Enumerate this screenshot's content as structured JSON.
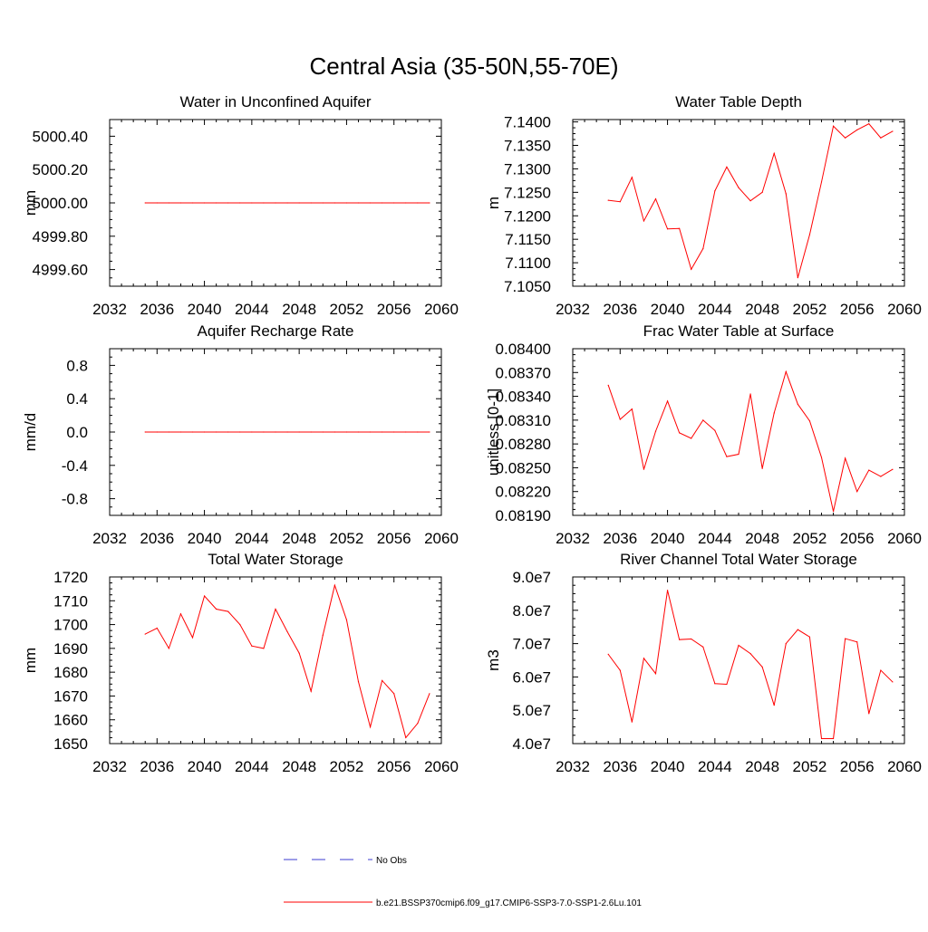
{
  "figure": {
    "title": "Central Asia (35-50N,55-70E)"
  },
  "legend": {
    "obs_label": "No Obs",
    "obs_color": "#3b3bd0",
    "model_label": "b.e21.BSSP370cmip6.f09_g17.CMIP6-SSP3-7.0-SSP1-2.6Lu.101",
    "model_color": "#ff0000"
  },
  "chart_data": [
    {
      "type": "line",
      "title": "Water in Unconfined Aquifer",
      "ylabel": "mm",
      "xlim": [
        2032,
        2060
      ],
      "ylim": [
        4999.5,
        5000.5
      ],
      "xticks": [
        2032,
        2036,
        2040,
        2044,
        2048,
        2052,
        2056,
        2060
      ],
      "yticks": [
        4999.6,
        4999.8,
        5000.0,
        5000.2,
        5000.4
      ],
      "ytick_labels": [
        "4999.60",
        "4999.80",
        "5000.00",
        "5000.20",
        "5000.40"
      ],
      "x": [
        2035,
        2036,
        2037,
        2038,
        2039,
        2040,
        2041,
        2042,
        2043,
        2044,
        2045,
        2046,
        2047,
        2048,
        2049,
        2050,
        2051,
        2052,
        2053,
        2054,
        2055,
        2056,
        2057,
        2058,
        2059
      ],
      "series": [
        {
          "values": [
            5000,
            5000,
            5000,
            5000,
            5000,
            5000,
            5000,
            5000,
            5000,
            5000,
            5000,
            5000,
            5000,
            5000,
            5000,
            5000,
            5000,
            5000,
            5000,
            5000,
            5000,
            5000,
            5000,
            5000,
            5000
          ]
        }
      ]
    },
    {
      "type": "line",
      "title": "Water Table Depth",
      "ylabel": "m",
      "xlim": [
        2032,
        2060
      ],
      "ylim": [
        7.105,
        7.1405
      ],
      "xticks": [
        2032,
        2036,
        2040,
        2044,
        2048,
        2052,
        2056,
        2060
      ],
      "yticks": [
        7.105,
        7.11,
        7.115,
        7.12,
        7.125,
        7.13,
        7.135,
        7.14
      ],
      "ytick_labels": [
        "7.1050",
        "7.1100",
        "7.1150",
        "7.1200",
        "7.1250",
        "7.1300",
        "7.1350",
        "7.1400"
      ],
      "x": [
        2035,
        2036,
        2037,
        2038,
        2039,
        2040,
        2041,
        2042,
        2043,
        2044,
        2045,
        2046,
        2047,
        2048,
        2049,
        2050,
        2051,
        2052,
        2053,
        2054,
        2055,
        2056,
        2057,
        2058,
        2059
      ],
      "series": [
        {
          "values": [
            7.1233,
            7.123,
            7.1282,
            7.1189,
            7.1236,
            7.1172,
            7.1173,
            7.1086,
            7.113,
            7.1253,
            7.1304,
            7.126,
            7.1232,
            7.125,
            7.1333,
            7.1247,
            7.1068,
            7.116,
            7.1272,
            7.1391,
            7.1366,
            7.1383,
            7.1396,
            7.1366,
            7.138
          ]
        }
      ]
    },
    {
      "type": "line",
      "title": "Aquifer Recharge Rate",
      "ylabel": "mm/d",
      "xlim": [
        2032,
        2060
      ],
      "ylim": [
        -1.0,
        1.0
      ],
      "xticks": [
        2032,
        2036,
        2040,
        2044,
        2048,
        2052,
        2056,
        2060
      ],
      "yticks": [
        -0.8,
        -0.4,
        0.0,
        0.4,
        0.8
      ],
      "ytick_labels": [
        "-0.8",
        "-0.4",
        "0.0",
        "0.4",
        "0.8"
      ],
      "x": [
        2035,
        2036,
        2037,
        2038,
        2039,
        2040,
        2041,
        2042,
        2043,
        2044,
        2045,
        2046,
        2047,
        2048,
        2049,
        2050,
        2051,
        2052,
        2053,
        2054,
        2055,
        2056,
        2057,
        2058,
        2059
      ],
      "series": [
        {
          "values": [
            0,
            0,
            0,
            0,
            0,
            0,
            0,
            0,
            0,
            0,
            0,
            0,
            0,
            0,
            0,
            0,
            0,
            0,
            0,
            0,
            0,
            0,
            0,
            0,
            0
          ]
        }
      ]
    },
    {
      "type": "line",
      "title": "Frac Water Table at Surface",
      "ylabel": "unitless [0-1]",
      "xlim": [
        2032,
        2060
      ],
      "ylim": [
        0.0819,
        0.084
      ],
      "xticks": [
        2032,
        2036,
        2040,
        2044,
        2048,
        2052,
        2056,
        2060
      ],
      "yticks": [
        0.0819,
        0.0822,
        0.0825,
        0.0828,
        0.0831,
        0.0834,
        0.0837,
        0.084
      ],
      "ytick_labels": [
        "0.08190",
        "0.08220",
        "0.08250",
        "0.08280",
        "0.08310",
        "0.08340",
        "0.08370",
        "0.08400"
      ],
      "x": [
        2035,
        2036,
        2037,
        2038,
        2039,
        2040,
        2041,
        2042,
        2043,
        2044,
        2045,
        2046,
        2047,
        2048,
        2049,
        2050,
        2051,
        2052,
        2053,
        2054,
        2055,
        2056,
        2057,
        2058,
        2059
      ],
      "series": [
        {
          "values": [
            0.08354,
            0.08311,
            0.08324,
            0.08248,
            0.08296,
            0.08334,
            0.08294,
            0.08287,
            0.0831,
            0.08297,
            0.08264,
            0.08267,
            0.08343,
            0.08249,
            0.08319,
            0.08371,
            0.0833,
            0.08309,
            0.08263,
            0.08195,
            0.08262,
            0.0822,
            0.08247,
            0.08239,
            0.08248
          ]
        }
      ]
    },
    {
      "type": "line",
      "title": "Total Water Storage",
      "ylabel": "mm",
      "xlim": [
        2032,
        2060
      ],
      "ylim": [
        1650,
        1720
      ],
      "xticks": [
        2032,
        2036,
        2040,
        2044,
        2048,
        2052,
        2056,
        2060
      ],
      "yticks": [
        1650,
        1660,
        1670,
        1680,
        1690,
        1700,
        1710,
        1720
      ],
      "ytick_labels": [
        "1650",
        "1660",
        "1670",
        "1680",
        "1690",
        "1700",
        "1710",
        "1720"
      ],
      "x": [
        2035,
        2036,
        2037,
        2038,
        2039,
        2040,
        2041,
        2042,
        2043,
        2044,
        2045,
        2046,
        2047,
        2048,
        2049,
        2050,
        2051,
        2052,
        2053,
        2054,
        2055,
        2056,
        2057,
        2058,
        2059
      ],
      "series": [
        {
          "values": [
            1696,
            1698.5,
            1690,
            1704.5,
            1694.5,
            1712,
            1706.5,
            1705.5,
            1700,
            1691,
            1690,
            1706.5,
            1697,
            1688,
            1672,
            1695.5,
            1716.5,
            1702,
            1676,
            1657,
            1676.5,
            1671,
            1652.5,
            1658.5,
            1671
          ]
        }
      ]
    },
    {
      "type": "line",
      "title": "River Channel Total Water Storage",
      "ylabel": "m3",
      "xlim": [
        2032,
        2060
      ],
      "ylim": [
        40000000,
        90000000
      ],
      "xticks": [
        2032,
        2036,
        2040,
        2044,
        2048,
        2052,
        2056,
        2060
      ],
      "yticks": [
        40000000,
        50000000,
        60000000,
        70000000,
        80000000,
        90000000
      ],
      "ytick_labels": [
        "4.0e7",
        "5.0e7",
        "6.0e7",
        "7.0e7",
        "8.0e7",
        "9.0e7"
      ],
      "x": [
        2035,
        2036,
        2037,
        2038,
        2039,
        2040,
        2041,
        2042,
        2043,
        2044,
        2045,
        2046,
        2047,
        2048,
        2049,
        2050,
        2051,
        2052,
        2053,
        2054,
        2055,
        2056,
        2057,
        2058,
        2059
      ],
      "series": [
        {
          "values": [
            66800000,
            62000000,
            46500000,
            65600000,
            61000000,
            86000000,
            71200000,
            71400000,
            69000000,
            58000000,
            57800000,
            69500000,
            67000000,
            63000000,
            51500000,
            70000000,
            74200000,
            72000000,
            41500000,
            41500000,
            71500000,
            70500000,
            49000000,
            62000000,
            58500000
          ]
        }
      ]
    }
  ]
}
